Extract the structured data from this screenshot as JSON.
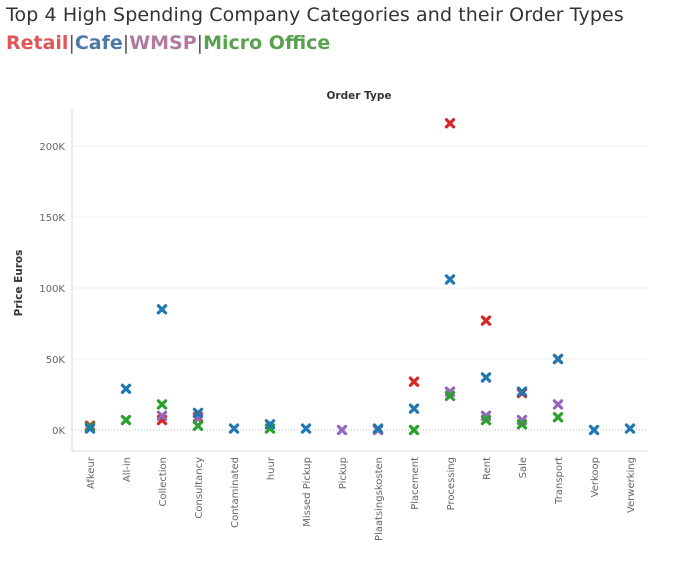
{
  "title": "Top 4 High Spending Company Categories and their Order Types",
  "legend": [
    {
      "label": "Retail",
      "color": "#e15759"
    },
    {
      "label": "Cafe",
      "color": "#4e79a7"
    },
    {
      "label": "WMSP",
      "color": "#b07aa1"
    },
    {
      "label": "Micro Office",
      "color": "#59a14f"
    }
  ],
  "separator": "|",
  "chart_data": {
    "type": "scatter",
    "title": "Top 4 High Spending Company Categories and their Order Types",
    "header": "Order Type",
    "ylabel": "Price Euros",
    "ylim": [
      -15000,
      225000
    ],
    "yticks": [
      0,
      50000,
      100000,
      150000,
      200000
    ],
    "ytick_labels": [
      "0K",
      "50K",
      "100K",
      "150K",
      "200K"
    ],
    "categories": [
      "Afkeur",
      "All-in",
      "Collection",
      "Consultancy",
      "Contaminated",
      "huur",
      "Missed Pickup",
      "Pickup",
      "Plaatsingskosten",
      "Placement",
      "Processing",
      "Rent",
      "Sale",
      "Transport",
      "Verkoop",
      "Verwerking"
    ],
    "grid": true,
    "series": [
      {
        "name": "Retail",
        "color": "#d62728",
        "values": [
          3000,
          null,
          7000,
          9000,
          null,
          null,
          null,
          null,
          null,
          34000,
          216000,
          77000,
          26000,
          50000,
          null,
          null
        ]
      },
      {
        "name": "WMSP",
        "color": "#9467bd",
        "values": [
          null,
          null,
          10000,
          8000,
          null,
          null,
          null,
          0,
          0,
          null,
          27000,
          10000,
          7000,
          18000,
          null,
          null
        ]
      },
      {
        "name": "Micro Office",
        "color": "#2ca02c",
        "values": [
          2000,
          7000,
          18000,
          3000,
          null,
          1000,
          null,
          null,
          null,
          0,
          24000,
          7000,
          4000,
          9000,
          null,
          null
        ]
      },
      {
        "name": "Cafe",
        "color": "#1f77b4",
        "values": [
          1000,
          29000,
          85000,
          12000,
          1000,
          4000,
          1000,
          null,
          1000,
          15000,
          106000,
          37000,
          27000,
          50000,
          0,
          1000
        ]
      }
    ]
  }
}
